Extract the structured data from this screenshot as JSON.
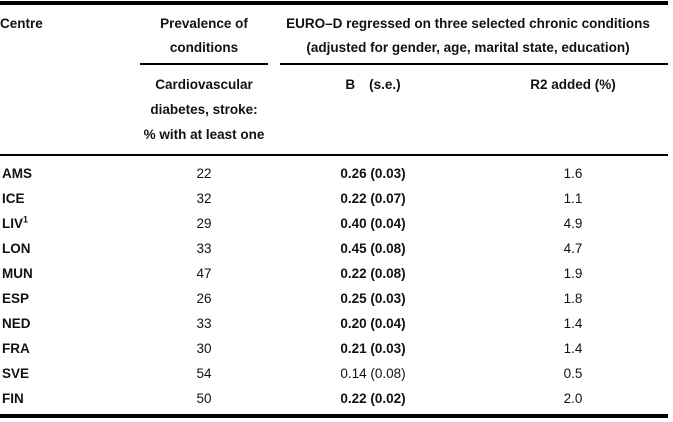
{
  "page": {
    "background_color": "#ffffff",
    "text_color": "#121212",
    "rule_color": "#000000"
  },
  "table": {
    "header": {
      "centre_label": "Centre",
      "prevalence_line1": "Prevalence of",
      "prevalence_line2": "conditions",
      "eurod_line1": "EURO–D regressed on three selected chronic conditions",
      "eurod_line2": "(adjusted for gender, age, marital state, education)",
      "prevalence_sub_line1": "Cardiovascular",
      "prevalence_sub_line2": "diabetes, stroke:",
      "prevalence_sub_line3": "% with at least one",
      "b_label": "B",
      "se_label": "(s.e.)",
      "r2_label": "R2 added (%)"
    },
    "rows": [
      {
        "centre": "AMS",
        "footnote": "",
        "prevalence": "22",
        "b_se": "0.26 (0.03)",
        "b_bold": true,
        "r2_added": "1.6"
      },
      {
        "centre": "ICE",
        "footnote": "",
        "prevalence": "32",
        "b_se": "0.22 (0.07)",
        "b_bold": true,
        "r2_added": "1.1"
      },
      {
        "centre": "LIV",
        "footnote": "1",
        "prevalence": "29",
        "b_se": "0.40 (0.04)",
        "b_bold": true,
        "r2_added": "4.9"
      },
      {
        "centre": "LON",
        "footnote": "",
        "prevalence": "33",
        "b_se": "0.45 (0.08)",
        "b_bold": true,
        "r2_added": "4.7"
      },
      {
        "centre": "MUN",
        "footnote": "",
        "prevalence": "47",
        "b_se": "0.22 (0.08)",
        "b_bold": true,
        "r2_added": "1.9"
      },
      {
        "centre": "ESP",
        "footnote": "",
        "prevalence": "26",
        "b_se": "0.25 (0.03)",
        "b_bold": true,
        "r2_added": "1.8"
      },
      {
        "centre": "NED",
        "footnote": "",
        "prevalence": "33",
        "b_se": "0.20 (0.04)",
        "b_bold": true,
        "r2_added": "1.4"
      },
      {
        "centre": "FRA",
        "footnote": "",
        "prevalence": "30",
        "b_se": "0.21 (0.03)",
        "b_bold": true,
        "r2_added": "1.4"
      },
      {
        "centre": "SVE",
        "footnote": "",
        "prevalence": "54",
        "b_se": "0.14 (0.08)",
        "b_bold": false,
        "r2_added": "0.5"
      },
      {
        "centre": "FIN",
        "footnote": "",
        "prevalence": "50",
        "b_se": "0.22 (0.02)",
        "b_bold": true,
        "r2_added": "2.0"
      }
    ]
  }
}
